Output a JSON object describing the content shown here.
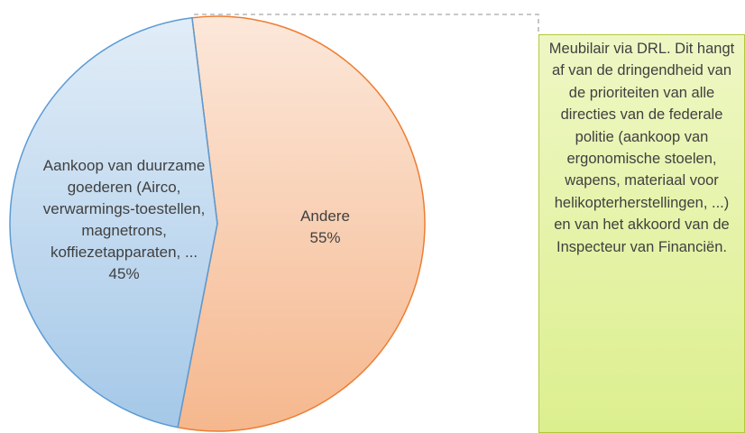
{
  "chart_data": {
    "type": "pie",
    "categories": [
      "Andere",
      "Aankoop van duurzame goederen (Airco, verwarmings-toestellen, magnetrons, koffiezetapparaten, ..."
    ],
    "values": [
      55,
      45
    ],
    "value_labels": [
      "55%",
      "45%"
    ],
    "colors": [
      "#ed7d31",
      "#5b9bd5"
    ],
    "annotation": "Meubilair via DRL. Dit hangt af van de dringendheid van de prioriteiten van alle directies van de federale politie (aankoop van ergonomische stoelen, wapens, materiaal voor helikopterherstellingen, ...) en van het akkoord van de Inspecteur van Financiën."
  }
}
